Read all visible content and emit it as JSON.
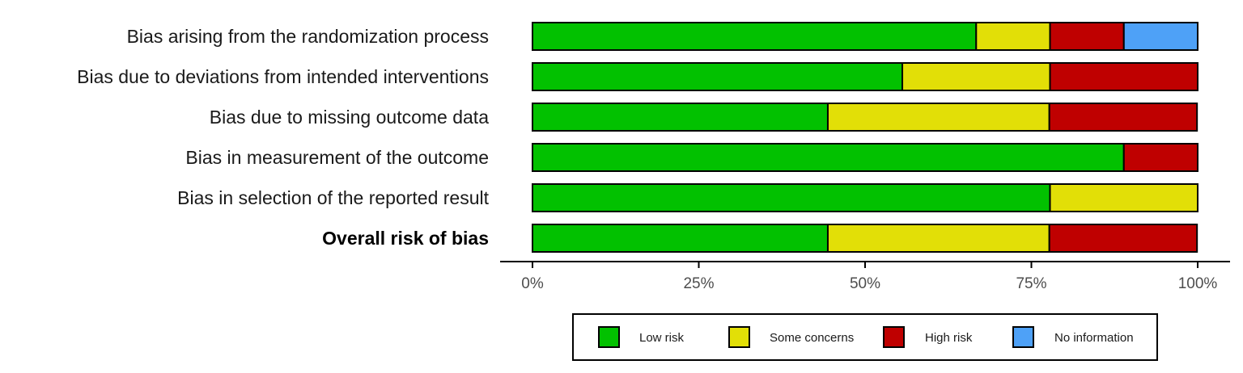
{
  "chart_data": {
    "type": "bar",
    "orientation": "horizontal",
    "stacked": true,
    "xlim": [
      0,
      100
    ],
    "x_unit": "percent",
    "grid": false,
    "legend_position": "bottom",
    "categories": [
      "Bias arising from the randomization process",
      "Bias due to deviations from intended interventions",
      "Bias due to missing outcome data",
      "Bias in measurement of the outcome",
      "Bias in selection of the reported result",
      "Overall risk of bias"
    ],
    "bold_categories": [
      "Overall risk of bias"
    ],
    "series": [
      {
        "name": "Low risk",
        "color": "#02C100",
        "values": [
          66.7,
          55.6,
          44.4,
          88.9,
          77.8,
          44.4
        ]
      },
      {
        "name": "Some concerns",
        "color": "#E2DF07",
        "values": [
          11.1,
          22.2,
          33.3,
          0,
          22.2,
          33.3
        ]
      },
      {
        "name": "High risk",
        "color": "#BF0000",
        "values": [
          11.1,
          22.2,
          22.2,
          11.1,
          0,
          22.2
        ]
      },
      {
        "name": "No information",
        "color": "#4EA1F7",
        "values": [
          11.1,
          0,
          0,
          0,
          0,
          0
        ]
      }
    ],
    "x_ticks": [
      {
        "value": 0,
        "label": "0%"
      },
      {
        "value": 25,
        "label": "25%"
      },
      {
        "value": 50,
        "label": "50%"
      },
      {
        "value": 75,
        "label": "75%"
      },
      {
        "value": 100,
        "label": "100%"
      }
    ]
  }
}
